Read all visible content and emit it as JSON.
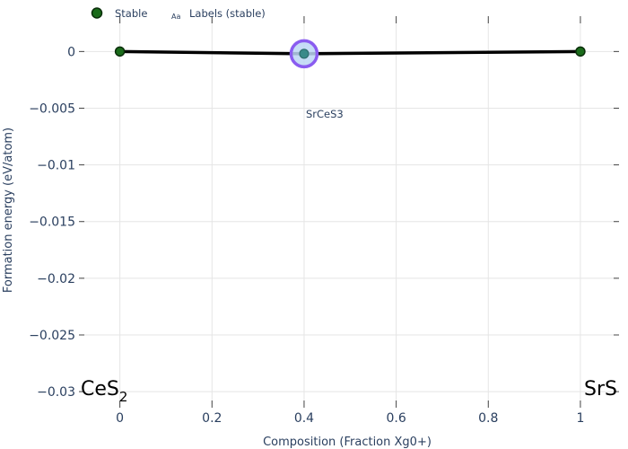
{
  "chart_data": {
    "type": "line",
    "xlabel": "Composition (Fraction Xg0+)",
    "ylabel": "Formation energy (eV/atom)",
    "xlim": [
      -0.085,
      1.08
    ],
    "ylim": [
      -0.0311,
      0.0028
    ],
    "x_ticks": [
      0,
      0.2,
      0.4,
      0.6,
      0.8,
      1
    ],
    "x_tick_labels": [
      "0",
      "0.2",
      "0.4",
      "0.6",
      "0.8",
      "1"
    ],
    "y_ticks": [
      0,
      -0.005,
      -0.01,
      -0.015,
      -0.02,
      -0.025,
      -0.03
    ],
    "y_tick_labels": [
      "0",
      "−0.005",
      "−0.01",
      "−0.015",
      "−0.02",
      "−0.025",
      "−0.03"
    ],
    "grid": true,
    "legend_placement": "top-left",
    "legend": [
      {
        "label": "Stable",
        "marker": "circle"
      },
      {
        "label": "Labels (stable)",
        "marker": "text",
        "glyph": "Aa"
      }
    ],
    "series": [
      {
        "name": "Stable",
        "x": [
          0,
          0.4,
          1
        ],
        "y": [
          0,
          -0.0002,
          0
        ],
        "labels": [
          "",
          "SrCeS3",
          ""
        ]
      }
    ],
    "highlight": {
      "x": 0.4,
      "y": -0.0002
    },
    "end_labels": [
      {
        "base": "CeS",
        "sub": "2",
        "x": 0
      },
      {
        "base": "SrS",
        "sub": "",
        "x": 1
      }
    ],
    "colors": {
      "line": "#000000",
      "marker_fill": "#1a6b1a",
      "marker_edge": "#0a2e0a",
      "highlight_fill": "#bcd6f5",
      "highlight_edge": "#8a5cf0",
      "highlight_marker": "#3a8a8a",
      "grid": "#e5e5e5",
      "text": "#2a3f5f"
    }
  }
}
